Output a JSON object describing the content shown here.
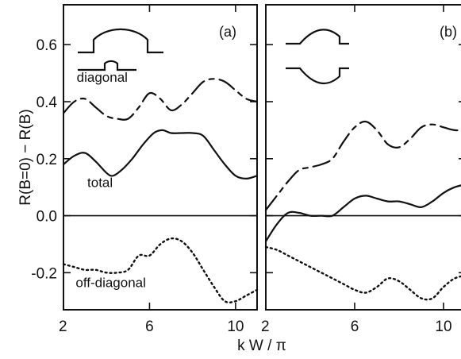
{
  "figure": {
    "ylabel": "R(B=0)  −  R(B)",
    "xlabel": "k W / π"
  },
  "chart_data": [
    {
      "type": "line",
      "panel_label": "(a)",
      "xlim": [
        2,
        11
      ],
      "ylim": [
        -0.33,
        0.74
      ],
      "x_ticks": [
        2,
        6,
        10
      ],
      "x_tick_labels": [
        "2",
        "6",
        "10"
      ],
      "y_ticks": [
        -0.2,
        0.0,
        0.2,
        0.4,
        0.6
      ],
      "y_tick_labels": [
        "-0.2",
        "0.0",
        "0.2",
        "0.4",
        "0.6"
      ],
      "annotations": [
        {
          "text": "diagonal",
          "x": 3.8,
          "y": 0.47
        },
        {
          "text": "total",
          "x": 3.7,
          "y": 0.1
        },
        {
          "text": "off-diagonal",
          "x": 4.2,
          "y": -0.25
        }
      ],
      "series": [
        {
          "style": "dashed",
          "x": [
            2.0,
            2.5,
            3.0,
            3.5,
            4.0,
            4.5,
            5.0,
            5.5,
            6.0,
            6.5,
            7.0,
            7.5,
            8.0,
            8.5,
            9.0,
            9.5,
            10.0,
            10.5,
            11.0
          ],
          "y": [
            0.36,
            0.4,
            0.41,
            0.38,
            0.35,
            0.34,
            0.34,
            0.38,
            0.43,
            0.41,
            0.37,
            0.39,
            0.43,
            0.47,
            0.48,
            0.47,
            0.44,
            0.41,
            0.4
          ]
        },
        {
          "style": "solid",
          "x": [
            2.0,
            2.5,
            3.0,
            3.5,
            4.0,
            4.3,
            4.7,
            5.2,
            5.7,
            6.2,
            6.6,
            7.0,
            7.5,
            8.0,
            8.5,
            9.0,
            9.5,
            10.0,
            10.5,
            11.0
          ],
          "y": [
            0.18,
            0.21,
            0.22,
            0.19,
            0.15,
            0.14,
            0.16,
            0.2,
            0.25,
            0.29,
            0.3,
            0.29,
            0.29,
            0.29,
            0.28,
            0.23,
            0.18,
            0.14,
            0.13,
            0.14
          ]
        },
        {
          "style": "dotted",
          "x": [
            2.0,
            2.5,
            3.0,
            3.5,
            4.0,
            4.5,
            5.0,
            5.5,
            6.0,
            6.5,
            7.0,
            7.5,
            8.0,
            8.5,
            9.0,
            9.5,
            10.0,
            10.5,
            11.0
          ],
          "y": [
            -0.17,
            -0.18,
            -0.19,
            -0.19,
            -0.2,
            -0.2,
            -0.19,
            -0.14,
            -0.14,
            -0.1,
            -0.08,
            -0.09,
            -0.13,
            -0.19,
            -0.25,
            -0.3,
            -0.3,
            -0.28,
            -0.26
          ]
        }
      ]
    },
    {
      "type": "line",
      "panel_label": "(b)",
      "xlim": [
        2,
        11
      ],
      "ylim": [
        -0.33,
        0.74
      ],
      "x_ticks": [
        2,
        6,
        10
      ],
      "x_tick_labels": [
        "2",
        "6",
        "10"
      ],
      "y_ticks": [
        -0.2,
        0.0,
        0.2,
        0.4,
        0.6
      ],
      "series": [
        {
          "style": "dashed",
          "x": [
            2.0,
            2.5,
            3.0,
            3.5,
            4.0,
            4.5,
            5.0,
            5.5,
            6.0,
            6.5,
            7.0,
            7.5,
            8.0,
            8.5,
            9.0,
            9.5,
            10.0,
            10.5,
            11.0
          ],
          "y": [
            0.02,
            0.07,
            0.12,
            0.16,
            0.17,
            0.18,
            0.2,
            0.26,
            0.31,
            0.33,
            0.3,
            0.25,
            0.24,
            0.27,
            0.31,
            0.32,
            0.31,
            0.3,
            0.3
          ]
        },
        {
          "style": "solid",
          "x": [
            2.0,
            2.5,
            3.0,
            3.5,
            4.0,
            4.5,
            5.0,
            5.5,
            6.0,
            6.5,
            7.0,
            7.5,
            8.0,
            8.5,
            9.0,
            9.5,
            10.0,
            10.5,
            11.0
          ],
          "y": [
            -0.09,
            -0.03,
            0.01,
            0.01,
            0.0,
            0.0,
            0.0,
            0.03,
            0.06,
            0.07,
            0.06,
            0.05,
            0.05,
            0.04,
            0.03,
            0.05,
            0.08,
            0.1,
            0.11
          ]
        },
        {
          "style": "dotted",
          "x": [
            2.0,
            2.5,
            3.0,
            3.5,
            4.0,
            4.5,
            5.0,
            5.5,
            6.0,
            6.5,
            7.0,
            7.5,
            8.0,
            8.5,
            9.0,
            9.5,
            10.0,
            10.5,
            11.0
          ],
          "y": [
            -0.11,
            -0.12,
            -0.14,
            -0.16,
            -0.18,
            -0.2,
            -0.22,
            -0.24,
            -0.26,
            -0.27,
            -0.25,
            -0.22,
            -0.23,
            -0.26,
            -0.29,
            -0.29,
            -0.25,
            -0.22,
            -0.21
          ]
        }
      ]
    }
  ]
}
